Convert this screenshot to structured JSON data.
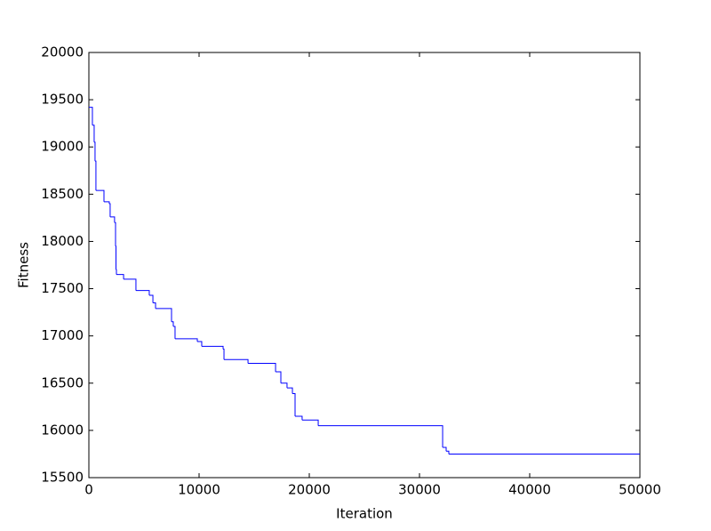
{
  "chart_data": {
    "type": "line",
    "step": "post",
    "x_label": "Iteration",
    "y_label": "Fitness",
    "x": [
      0,
      320,
      480,
      560,
      640,
      1370,
      1850,
      1930,
      2330,
      2420,
      2460,
      2500,
      3150,
      4270,
      5480,
      5810,
      6050,
      7500,
      7660,
      7820,
      9840,
      10240,
      12180,
      12260,
      14440,
      16940,
      17420,
      17980,
      18470,
      18710,
      19350,
      20810,
      32100,
      32420,
      32660,
      50000
    ],
    "series": [
      {
        "color": "#0000ff",
        "values": [
          19420,
          19230,
          19050,
          18850,
          18540,
          18420,
          18400,
          18260,
          18200,
          17950,
          17700,
          17650,
          17600,
          17480,
          17430,
          17350,
          17290,
          17150,
          17100,
          16970,
          16940,
          16890,
          16860,
          16750,
          16710,
          16620,
          16500,
          16450,
          16390,
          16150,
          16110,
          16050,
          15820,
          15780,
          15750,
          15750
        ]
      }
    ],
    "xlim": [
      0,
      50000
    ],
    "xticks": [
      0,
      10000,
      20000,
      30000,
      40000,
      50000
    ],
    "ylim": [
      15500,
      20000
    ],
    "yticks": [
      15500,
      16000,
      16500,
      17000,
      17500,
      18000,
      18500,
      19000,
      19500,
      20000
    ]
  }
}
